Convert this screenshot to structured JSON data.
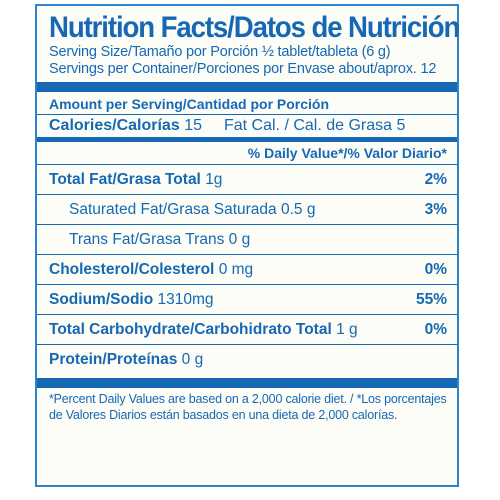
{
  "title": "Nutrition Facts/Datos de Nutrición",
  "serving_size": "Serving Size/Tamaño por Porción ½ tablet/tableta (6 g)",
  "servings_per_container": "Servings per Container/Porciones por Envase about/aprox. 12",
  "amount_per_serving": "Amount per Serving/Cantidad por Porción",
  "calories": {
    "label": "Calories/Calorías",
    "value": "15",
    "fat_cal": "Fat Cal. / Cal. de Grasa 5"
  },
  "daily_value_header": "% Daily Value*/% Valor Diario*",
  "nutrients": [
    {
      "label": "Total Fat/Grasa Total",
      "amount": "1g",
      "dv": "2%"
    },
    {
      "label": "Saturated Fat/Grasa Saturada",
      "amount": "0.5 g",
      "dv": "3%"
    },
    {
      "label": "Trans Fat/Grasa Trans",
      "amount": "0 g",
      "dv": ""
    },
    {
      "label": "Cholesterol/Colesterol",
      "amount": "0 mg",
      "dv": "0%"
    },
    {
      "label": "Sodium/Sodio",
      "amount": "1310mg",
      "dv": "55%"
    },
    {
      "label": "Total Carbohydrate/Carbohidrato Total",
      "amount": "1 g",
      "dv": "0%"
    },
    {
      "label": "Protein/Proteínas",
      "amount": "0 g",
      "dv": ""
    }
  ],
  "footnote": "*Percent Daily Values are based on a 2,000 calorie diet. / *Los porcentajes de Valores Diarios están basados en una dieta de 2,000 calorías.",
  "colors": {
    "ink": "#1668b4",
    "border": "#2e84c8",
    "background": "#fdfdf8"
  }
}
